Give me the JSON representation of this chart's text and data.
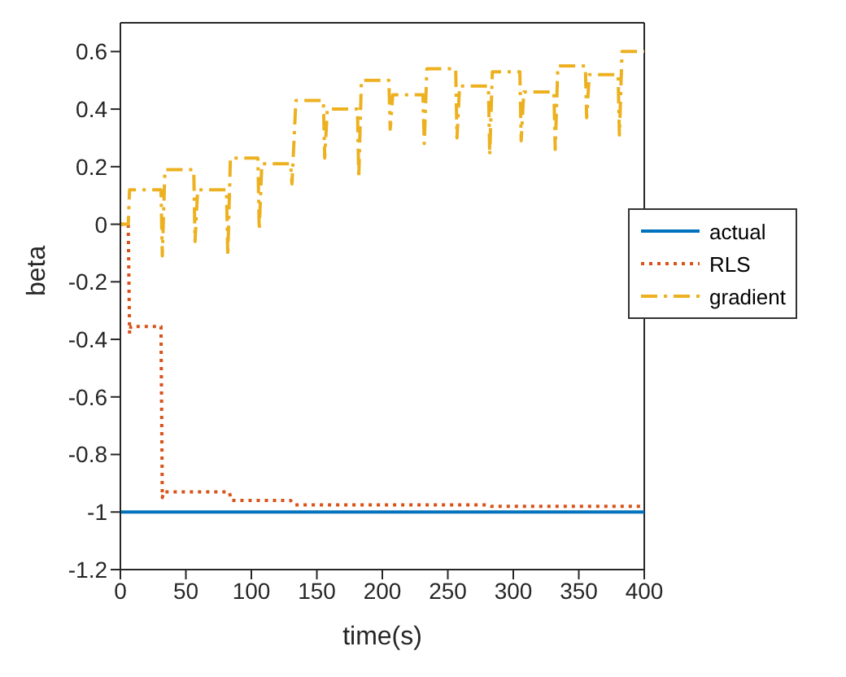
{
  "chart_data": {
    "type": "line",
    "xlabel": "time(s)",
    "ylabel": "beta",
    "xlim": [
      0,
      400
    ],
    "xticks": [
      0,
      50,
      100,
      150,
      200,
      250,
      300,
      350,
      400
    ],
    "ylim": [
      -1.2,
      0.7
    ],
    "yticks": [
      -1.2,
      -1,
      -0.8,
      -0.6,
      -0.4,
      -0.2,
      0,
      0.2,
      0.4,
      0.6
    ],
    "grid": false,
    "legend": "right",
    "marker": "none",
    "series": [
      {
        "name": "actual",
        "color": "#0072bd",
        "line_style": "solid",
        "x": [
          0,
          400
        ],
        "values": [
          -1,
          -1
        ]
      },
      {
        "name": "RLS",
        "color": "#d95319",
        "line_style": "dotted",
        "x": [
          0,
          6,
          7,
          8,
          31,
          32,
          33,
          34,
          83,
          85,
          130,
          133,
          280,
          283,
          400
        ],
        "values": [
          0,
          0,
          -0.38,
          -0.355,
          -0.355,
          -0.95,
          -0.93,
          -0.93,
          -0.93,
          -0.96,
          -0.96,
          -0.975,
          -0.975,
          -0.98,
          -0.98
        ]
      },
      {
        "name": "gradient",
        "color": "#edb120",
        "line_style": "dashdot",
        "x": [
          0,
          6,
          7,
          31,
          32,
          34,
          56,
          57,
          59,
          81,
          82,
          84,
          105,
          106,
          108,
          130,
          131,
          134,
          155,
          156,
          158,
          181,
          182,
          184,
          205,
          206,
          208,
          231,
          232,
          234,
          256,
          257,
          259,
          281,
          282,
          284,
          305,
          306,
          308,
          331,
          332,
          334,
          355,
          356,
          358,
          380,
          381,
          383,
          400
        ],
        "values": [
          0,
          0,
          0.12,
          0.12,
          -0.11,
          0.19,
          0.19,
          -0.06,
          0.12,
          0.12,
          -0.11,
          0.23,
          0.23,
          -0.02,
          0.21,
          0.21,
          0.14,
          0.43,
          0.43,
          0.23,
          0.4,
          0.4,
          0.16,
          0.5,
          0.5,
          0.33,
          0.45,
          0.45,
          0.28,
          0.54,
          0.54,
          0.3,
          0.48,
          0.48,
          0.24,
          0.53,
          0.53,
          0.29,
          0.46,
          0.46,
          0.26,
          0.55,
          0.55,
          0.37,
          0.52,
          0.52,
          0.31,
          0.6,
          0.6
        ]
      }
    ]
  }
}
